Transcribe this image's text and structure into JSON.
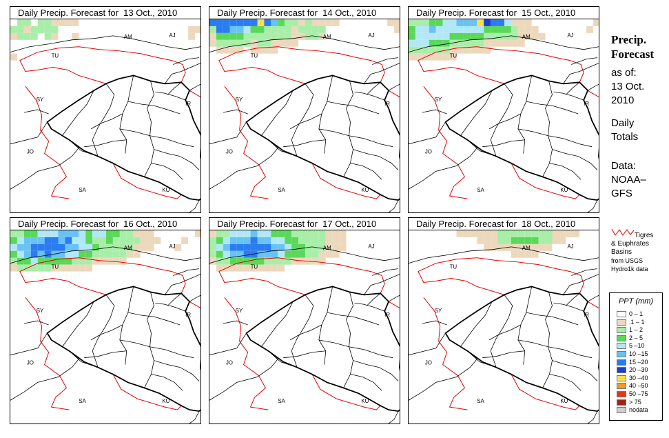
{
  "panels": [
    {
      "title": "Daily Precip. Forecast for  13 Oct., 2010",
      "grid": [
        "0220221111000000000000000000",
        "2212222000000000000000000011",
        "1222021001000000000000000010",
        "0000000000000000000000000000",
        "0000000000000000000000000000",
        "1000000000000000000000000000"
      ]
    },
    {
      "title": "Daily Precip. Forecast for  14 Oct., 2010",
      "grid": [
        "6666666865322121111000000011",
        "2665543322221222200000000001",
        "1333322222221122100000000000",
        "1222221221111000000000000000",
        "0111101111000000000000000000",
        "0000000000000000000000000000"
      ]
    },
    {
      "title": "Daily Precip. Forecast for  15 Oct., 2010",
      "grid": [
        "2223344555876641110000000001",
        "3445444444433332111000000010",
        "3444443333322222111100000000",
        "4443332222211111100000000000",
        "2222221111110000000000000000",
        "1111111000000000000000000000"
      ]
    },
    {
      "title": "Daily Precip. Forecast for  16 Oct., 2010",
      "grid": [
        "2233444555434433221110000001",
        "3455566564432232222111000100",
        "4556666655443222221110001000",
        "3456565544332222211000000000",
        "2334333332221111100000000000",
        "1222221111110000000000000000"
      ]
    },
    {
      "title": "Daily Precip. Forecast for  17 Oct., 2010",
      "grid": [
        "1224445443332222211100000000",
        "2345556554433222211100000000",
        "2456666665543322211100000000",
        "2345566555433322111000000000",
        "1223333322221111100000000000",
        "0111111111100000000000000000"
      ]
    },
    {
      "title": "Daily Precip. Forecast for  18 Oct., 2010",
      "grid": [
        "0000000111111222222221111000",
        "0000000000111223333221100000",
        "0000000000011111111110000000",
        "0000000000000001111000000000",
        "0000000000000000000000000000",
        "0000000000000000000000000000"
      ]
    }
  ],
  "map_labels": {
    "am": "AM",
    "aj": "AJ",
    "tu": "TU",
    "sy": "SY",
    "ir": "IR",
    "jo": "JO",
    "sa": "SA",
    "ku": "KU"
  },
  "side": {
    "title_line1": "Precip.",
    "title_line2": "Forecast",
    "asof_line1": "as of:",
    "asof_line2": "13 Oct.",
    "asof_line3": "2010",
    "daily_line1": "Daily",
    "daily_line2": "Totals",
    "data_line1": "Data:",
    "data_line2": "NOAA–",
    "data_line3": "GFS"
  },
  "basin_note": {
    "line1": "Tigres",
    "line2": "& Euphrates",
    "line3": "Basins",
    "line4": "from USGS",
    "line5": "Hydro1k data"
  },
  "legend": {
    "title": "PPT (mm)",
    "items": [
      {
        "label": "0 – 1",
        "color": "#ffffff"
      },
      {
        "label": ".1 – 1",
        "color": "#ecd9bd"
      },
      {
        "label": "1 – 2",
        "color": "#a8eea8"
      },
      {
        "label": "2 – 5",
        "color": "#5ad85a"
      },
      {
        "label": "5 –10",
        "color": "#b2e8f6"
      },
      {
        "label": "10 –15",
        "color": "#68c2f5"
      },
      {
        "label": "15 –20",
        "color": "#2a7cf0"
      },
      {
        "label": "20 –30",
        "color": "#1a3fd6"
      },
      {
        "label": "30 –40",
        "color": "#f7e04a"
      },
      {
        "label": "40 –50",
        "color": "#f59a22"
      },
      {
        "label": "50 –75",
        "color": "#e23818"
      },
      {
        "label": "> 75",
        "color": "#9e2416"
      },
      {
        "label": "nodata",
        "color": "#cfcfcf"
      }
    ]
  },
  "colors": {
    "basin": "#e00000",
    "border": "#000000"
  }
}
